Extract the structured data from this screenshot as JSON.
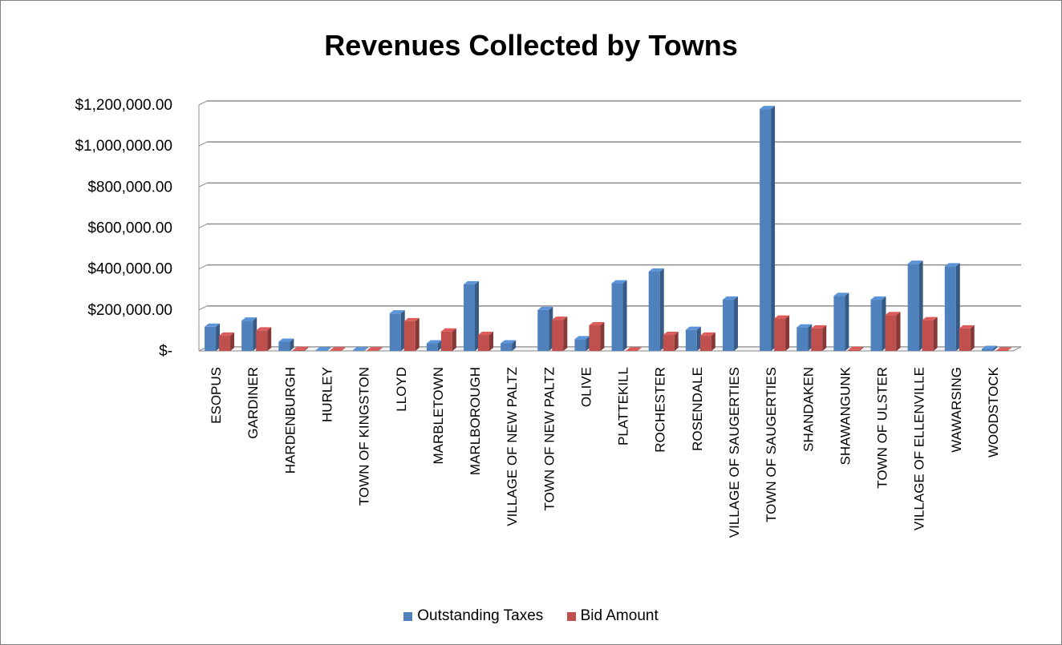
{
  "chart_data": {
    "type": "bar",
    "title": "Revenues Collected by Towns",
    "xlabel": "",
    "ylabel": "",
    "ylim": [
      0,
      1200000
    ],
    "y_ticks": [
      "$-",
      "$200,000.00",
      "$400,000.00",
      "$600,000.00",
      "$800,000.00",
      "$1,000,000.00",
      "$1,200,000.00"
    ],
    "grid": true,
    "legend_position": "bottom",
    "categories": [
      "ESOPUS",
      "GARDINER",
      "HARDENBURGH",
      "HURLEY",
      "TOWN OF KINGSTON",
      "LLOYD",
      "MARBLETOWN",
      "MARLBOROUGH",
      "VILLAGE OF NEW PALTZ",
      "TOWN OF NEW PALTZ",
      "OLIVE",
      "PLATTEKILL",
      "ROCHESTER",
      "ROSENDALE",
      "VILLAGE OF SAUGERTIES",
      "TOWN OF SAUGERTIES",
      "SHANDAKEN",
      "SHAWANGUNK",
      "TOWN OF ULSTER",
      "VILLAGE OF ELLENVILLE",
      "WAWARSING",
      "WOODSTOCK"
    ],
    "series": [
      {
        "name": "Outstanding Taxes",
        "color": "#4f81bd",
        "values": [
          118000,
          148000,
          45000,
          3000,
          3000,
          183000,
          37000,
          325000,
          37000,
          200000,
          57000,
          330000,
          387000,
          103000,
          250000,
          1180000,
          115000,
          268000,
          250000,
          425000,
          413000,
          10000
        ]
      },
      {
        "name": "Bid Amount",
        "color": "#c0504d",
        "values": [
          75000,
          100000,
          5000,
          3000,
          3000,
          145000,
          95000,
          78000,
          0,
          152000,
          125000,
          2000,
          78000,
          75000,
          0,
          158000,
          110000,
          5000,
          175000,
          150000,
          110000,
          2000
        ]
      }
    ]
  }
}
